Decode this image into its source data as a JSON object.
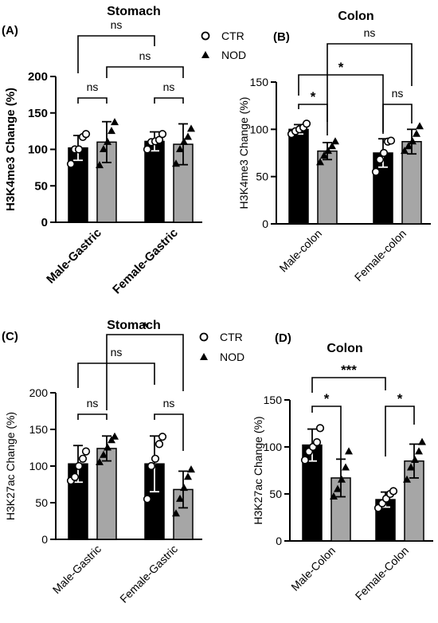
{
  "legend": {
    "ctr": "CTR",
    "nod": "NOD"
  },
  "chart_data": [
    {
      "panel": "(A)",
      "type": "bar",
      "title": "Stomach",
      "ylabel": "H3K4me3 Change (%)",
      "ylim": [
        0,
        200
      ],
      "yticks": [
        "0",
        "50",
        "100",
        "150",
        "200"
      ],
      "categories": [
        "Male-Gastric",
        "Female-Gastric"
      ],
      "series": [
        {
          "name": "CTR",
          "values": [
            102,
            111
          ],
          "sd": [
            17,
            13
          ],
          "points": [
            [
              80,
              100,
              100,
              117,
              121
            ],
            [
              100,
              110,
              111,
              113,
              121
            ]
          ]
        },
        {
          "name": "NOD",
          "values": [
            110,
            107
          ],
          "sd": [
            28,
            28
          ],
          "points": [
            [
              78,
              100,
              110,
              125,
              137
            ],
            [
              80,
              100,
              110,
              117,
              128
            ]
          ]
        }
      ],
      "comparisons": [
        {
          "label": "ns"
        },
        {
          "label": "ns"
        },
        {
          "label": "ns"
        },
        {
          "label": "ns"
        }
      ]
    },
    {
      "panel": "(B)",
      "type": "bar",
      "title": "Colon",
      "ylabel": "H3K4me3 Change (%)",
      "ylim": [
        0,
        150
      ],
      "yticks": [
        "0",
        "50",
        "100",
        "150"
      ],
      "categories": [
        "Male-colon",
        "Female-colon"
      ],
      "series": [
        {
          "name": "CTR",
          "values": [
            100,
            75
          ],
          "sd": [
            5,
            15
          ],
          "points": [
            [
              95,
              98,
              100,
              102,
              106
            ],
            [
              55,
              68,
              75,
              87,
              88
            ]
          ]
        },
        {
          "name": "NOD",
          "values": [
            77,
            87
          ],
          "sd": [
            9,
            13
          ],
          "points": [
            [
              65,
              72,
              77,
              82,
              87
            ],
            [
              77,
              82,
              87,
              95,
              103
            ]
          ]
        }
      ],
      "comparisons": [
        {
          "label": "*"
        },
        {
          "label": "ns"
        },
        {
          "label": "*"
        },
        {
          "label": "ns"
        }
      ]
    },
    {
      "panel": "(C)",
      "type": "bar",
      "title": "Stomach",
      "ylabel": "H3K27ac Change (%)",
      "ylim": [
        0,
        200
      ],
      "yticks": [
        "0",
        "50",
        "100",
        "150",
        "200"
      ],
      "categories": [
        "Male-Gastric",
        "Female-Gastric"
      ],
      "series": [
        {
          "name": "CTR",
          "values": [
            103,
            103
          ],
          "sd": [
            25,
            38
          ],
          "points": [
            [
              80,
              85,
              100,
              110,
              120
            ],
            [
              55,
              100,
              110,
              130,
              140
            ]
          ]
        },
        {
          "name": "NOD",
          "values": [
            124,
            68
          ],
          "sd": [
            17,
            25
          ],
          "points": [
            [
              105,
              115,
              125,
              135,
              140
            ],
            [
              35,
              55,
              70,
              85,
              95
            ]
          ]
        }
      ],
      "comparisons": [
        {
          "label": "ns"
        },
        {
          "label": "ns"
        },
        {
          "label": "ns"
        },
        {
          "label": "*"
        }
      ]
    },
    {
      "panel": "(D)",
      "type": "bar",
      "title": "Colon",
      "ylabel": "H3K27ac Change (%)",
      "ylim": [
        0,
        150
      ],
      "yticks": [
        "0",
        "50",
        "100",
        "150"
      ],
      "categories": [
        "Male-Colon",
        "Female-Colon"
      ],
      "series": [
        {
          "name": "CTR",
          "values": [
            102,
            44
          ],
          "sd": [
            17,
            8
          ],
          "points": [
            [
              86,
              95,
              100,
              105,
              120
            ],
            [
              35,
              40,
              45,
              50,
              53
            ]
          ]
        },
        {
          "name": "NOD",
          "values": [
            67,
            85
          ],
          "sd": [
            20,
            18
          ],
          "points": [
            [
              47,
              55,
              65,
              78,
              95
            ],
            [
              65,
              78,
              86,
              95,
              105
            ]
          ]
        }
      ],
      "comparisons": [
        {
          "label": "*"
        },
        {
          "label": "*"
        },
        {
          "label": "***"
        }
      ]
    }
  ]
}
